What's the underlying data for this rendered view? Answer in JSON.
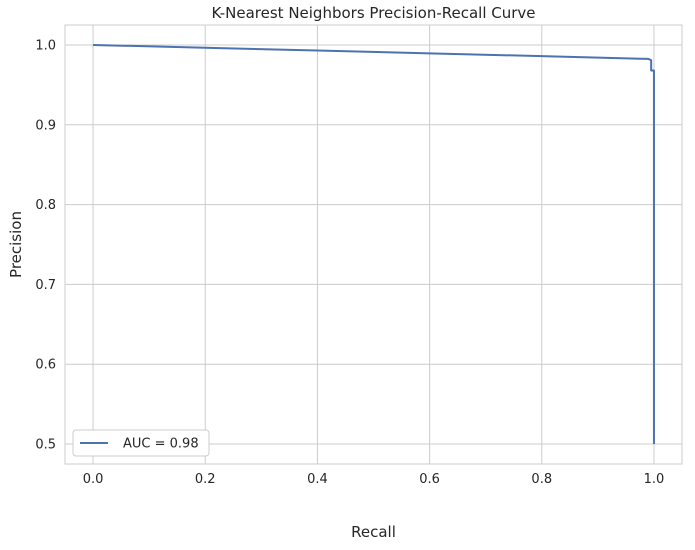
{
  "chart_data": {
    "type": "line",
    "title": "K-Nearest Neighbors Precision-Recall Curve",
    "xlabel": "Recall",
    "ylabel": "Precision",
    "xlim": [
      -0.05,
      1.05
    ],
    "ylim": [
      0.475,
      1.025
    ],
    "xticks": [
      0.0,
      0.2,
      0.4,
      0.6,
      0.8,
      1.0
    ],
    "xtick_labels": [
      "0.0",
      "0.2",
      "0.4",
      "0.6",
      "0.8",
      "1.0"
    ],
    "yticks": [
      0.5,
      0.6,
      0.7,
      0.8,
      0.9,
      1.0
    ],
    "ytick_labels": [
      "0.5",
      "0.6",
      "0.7",
      "0.8",
      "0.9",
      "1.0"
    ],
    "grid": true,
    "legend_position": "lower-left",
    "series": [
      {
        "name": "AUC = 0.98",
        "color": "#4c72b0",
        "x": [
          0.0,
          0.2,
          0.4,
          0.6,
          0.8,
          0.99,
          0.995,
          0.995,
          1.0,
          1.0,
          1.0
        ],
        "y": [
          1.0,
          0.9965,
          0.993,
          0.9895,
          0.986,
          0.9825,
          0.981,
          0.968,
          0.968,
          0.75,
          0.5
        ]
      }
    ]
  }
}
